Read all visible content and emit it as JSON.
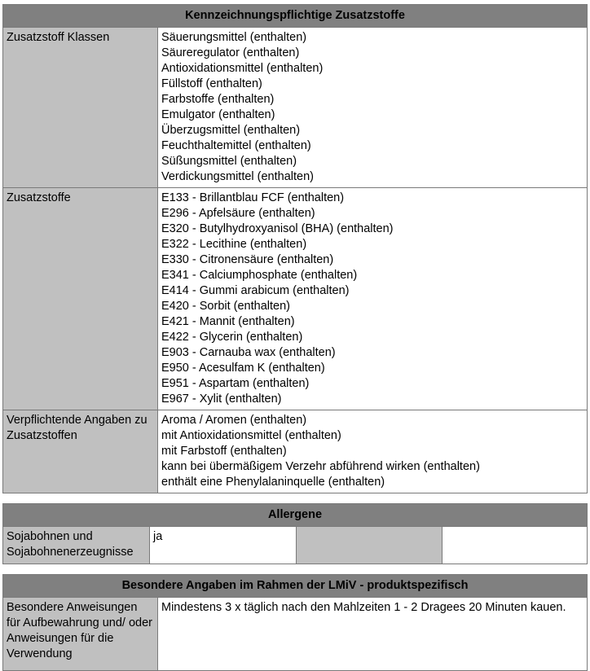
{
  "zusatzstoffe_table": {
    "title": "Kennzeichnungspflichtige Zusatzstoffe",
    "rows": [
      {
        "label": "Zusatzstoff Klassen",
        "values": [
          "Säuerungsmittel (enthalten)",
          "Säureregulator (enthalten)",
          "Antioxidationsmittel (enthalten)",
          "Füllstoff (enthalten)",
          "Farbstoffe (enthalten)",
          "Emulgator (enthalten)",
          "Überzugsmittel (enthalten)",
          "Feuchthaltemittel (enthalten)",
          "Süßungsmittel (enthalten)",
          "Verdickungsmittel (enthalten)"
        ]
      },
      {
        "label": "Zusatzstoffe",
        "values": [
          "E133 - Brillantblau FCF (enthalten)",
          "E296 - Apfelsäure (enthalten)",
          "E320 - Butylhydroxyanisol (BHA) (enthalten)",
          "E322 - Lecithine (enthalten)",
          "E330 - Citronensäure (enthalten)",
          "E341 - Calciumphosphate (enthalten)",
          "E414 - Gummi arabicum (enthalten)",
          "E420 - Sorbit (enthalten)",
          "E421 - Mannit (enthalten)",
          "E422 - Glycerin (enthalten)",
          "E903 - Carnauba wax (enthalten)",
          "E950 - Acesulfam K (enthalten)",
          "E951 - Aspartam (enthalten)",
          "E967 - Xylit (enthalten)"
        ]
      },
      {
        "label": "Verpflichtende Angaben zu Zusatzstoffen",
        "values": [
          "Aroma / Aromen (enthalten)",
          "mit Antioxidationsmittel (enthalten)",
          "mit Farbstoff (enthalten)",
          "kann bei übermäßigem Verzehr abführend wirken (enthalten)",
          "enthält eine Phenylalaninquelle (enthalten)"
        ]
      }
    ]
  },
  "allergene_table": {
    "title": "Allergene",
    "label": "Sojabohnen und Sojabohnenerzeugnisse",
    "value": "ja"
  },
  "lmiv_table": {
    "title": "Besondere Angaben im Rahmen der LMiV - produktspezifisch",
    "label": "Besondere Anweisungen für Aufbewahrung und/ oder Anweisungen für die Verwendung",
    "value": "Mindestens 3 x täglich nach den Mahlzeiten 1 - 2 Dragees 20 Minuten kauen."
  }
}
